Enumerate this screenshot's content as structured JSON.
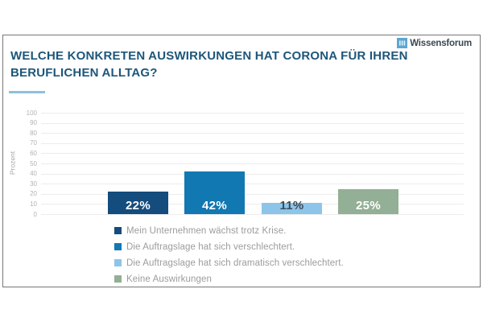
{
  "logo": {
    "name": "Wissensforum",
    "square_color": "#5BA7D2"
  },
  "title": "WELCHE KONKRETEN AUSWIRKUNGEN HAT CORONA FÜR IHREN BERUFLICHEN ALLTAG?",
  "accent_color": "#8FC0DA",
  "chart_data": {
    "type": "bar",
    "title": "Welche konkreten Auswirkungen hat Corona für Ihren beruflichen Alltag?",
    "xlabel": "",
    "ylabel": "Prozent",
    "ylim": [
      0,
      100
    ],
    "ytick_step": 10,
    "grid": true,
    "legend_position": "bottom",
    "categories": [
      "Mein Unternehmen wächst trotz Krise.",
      "Die Auftragslage hat sich verschlechtert.",
      "Die Auftragslage hat sich dramatisch verschlechtert.",
      "Keine Auswirkungen"
    ],
    "values": [
      22,
      42,
      11,
      25
    ],
    "value_labels": [
      "22%",
      "42%",
      "11%",
      "25%"
    ],
    "colors": [
      "#144C7D",
      "#1278B2",
      "#8CC5E9",
      "#93AF95"
    ],
    "value_label_colors": [
      "#ffffff",
      "#ffffff",
      "#3E4B55",
      "#ffffff"
    ]
  }
}
